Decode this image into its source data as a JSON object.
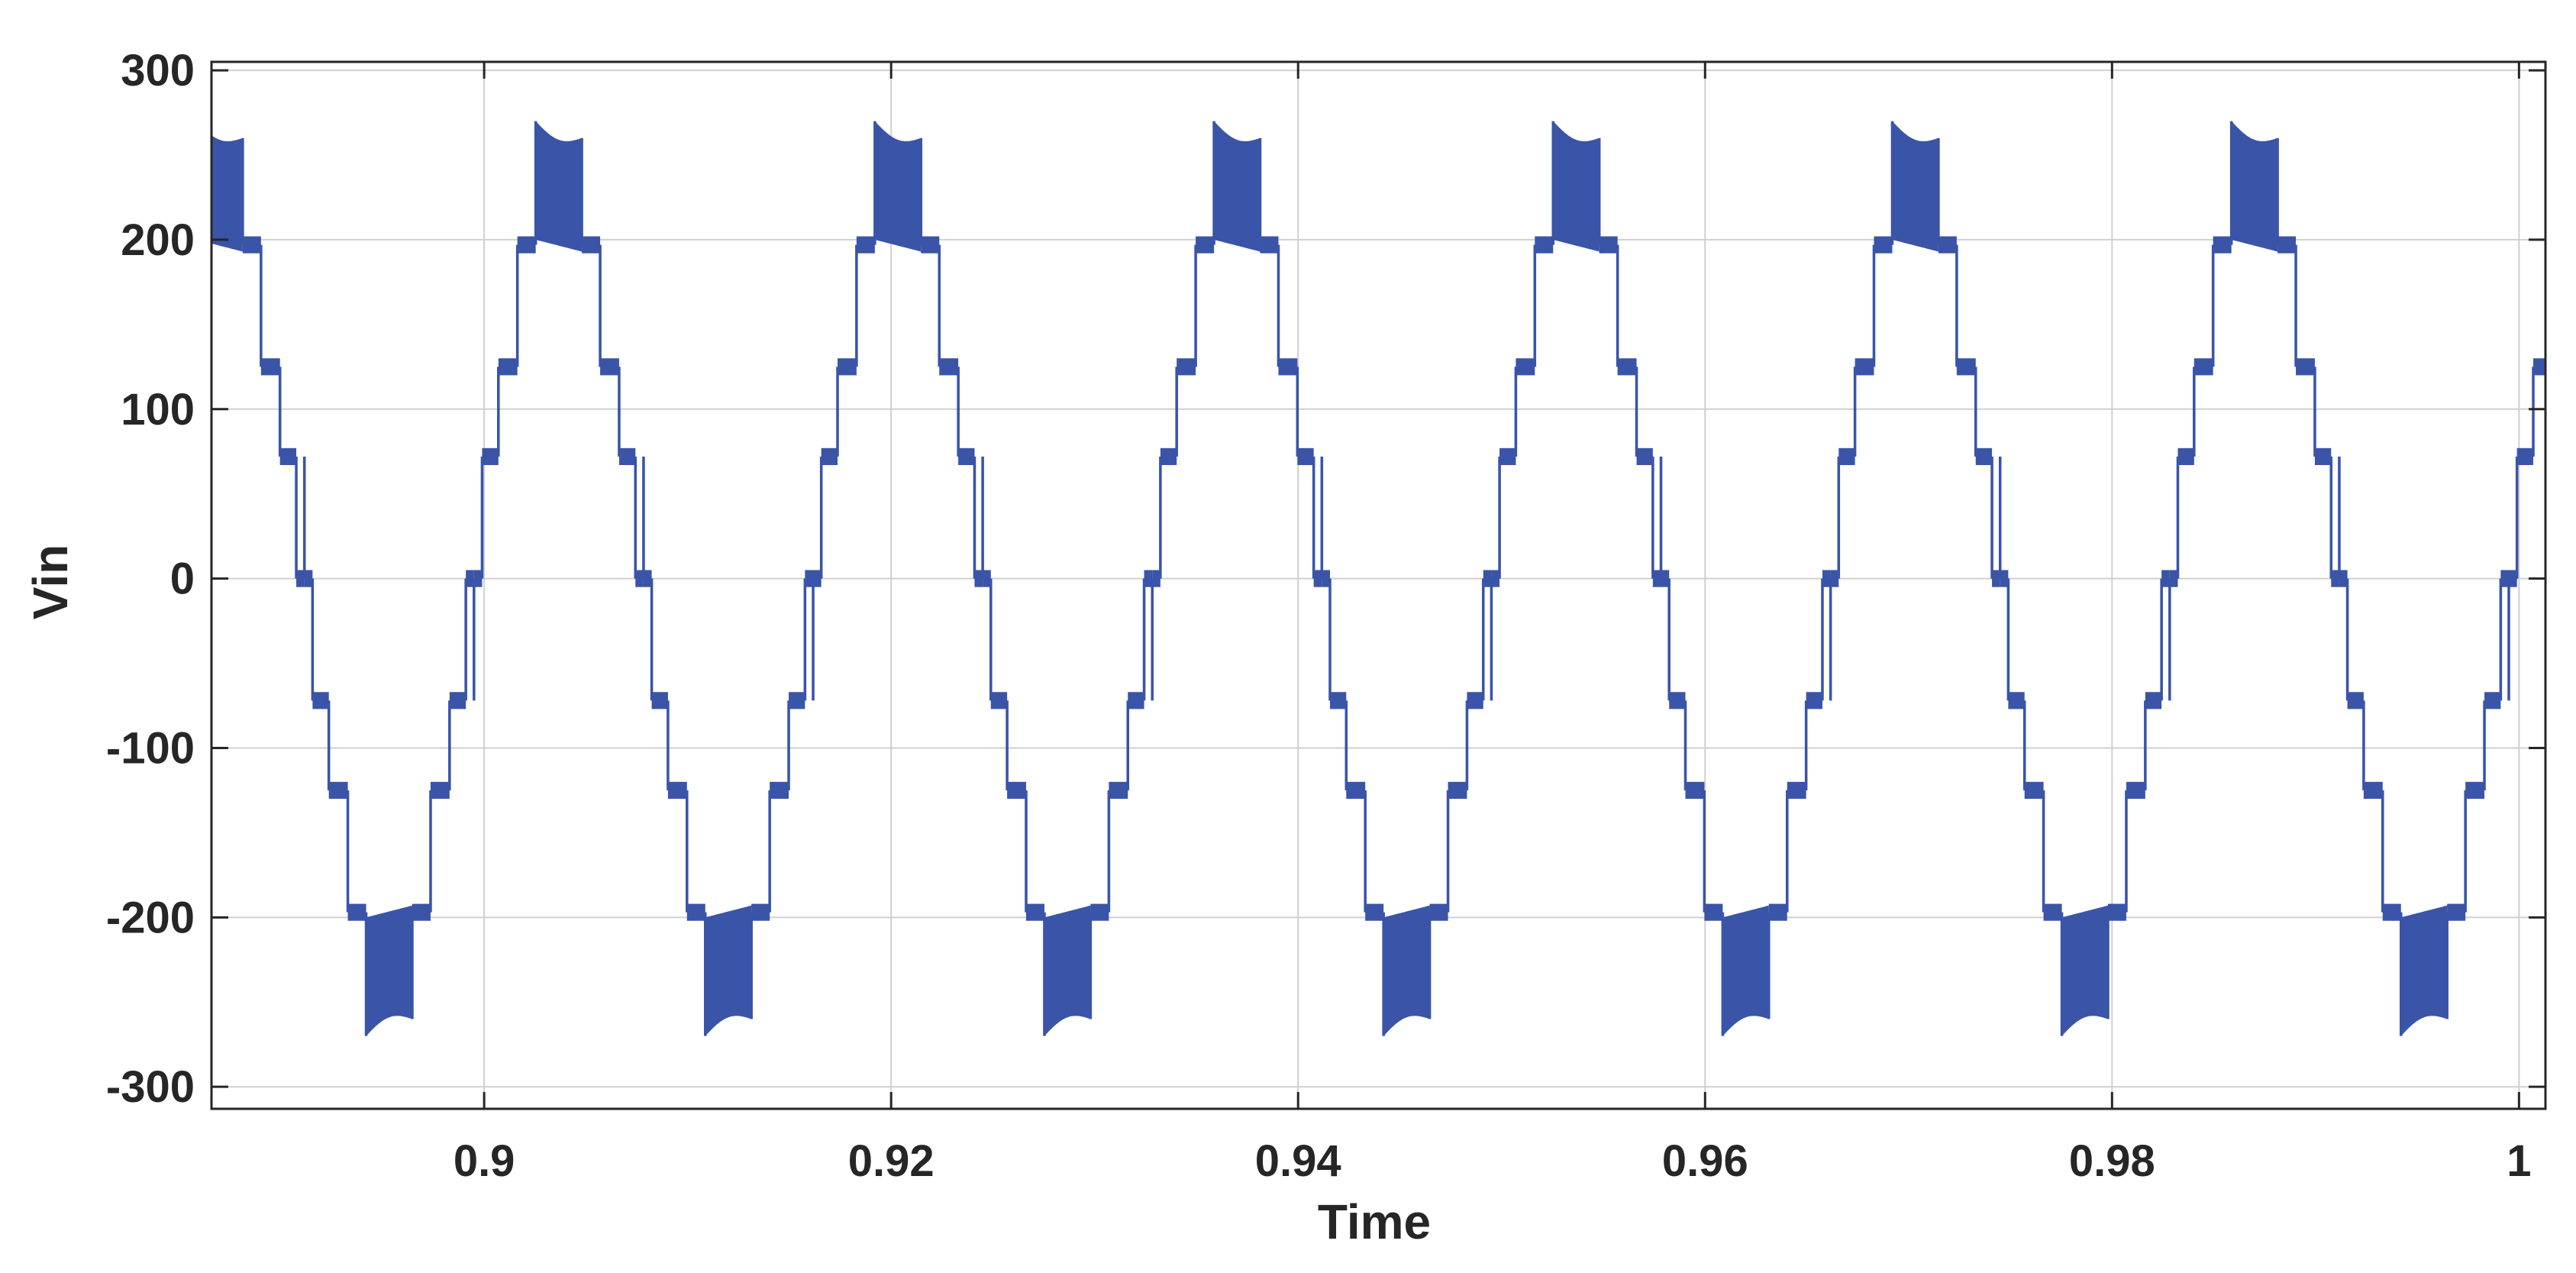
{
  "chart_data": {
    "type": "line",
    "title": "",
    "xlabel": "Time",
    "ylabel": "Vin",
    "xlim": [
      0.8866,
      1.0013
    ],
    "ylim": [
      -313,
      305
    ],
    "grid": true,
    "xticks": [
      0.9,
      0.92,
      0.94,
      0.96,
      0.98,
      1
    ],
    "xtick_labels": [
      "0.9",
      "0.92",
      "0.94",
      "0.96",
      "0.98",
      "1"
    ],
    "yticks": [
      300,
      200,
      100,
      0,
      -100,
      -200,
      -300
    ],
    "ytick_labels": [
      "300",
      "200",
      "100",
      "0",
      "-100",
      "-200",
      "-300"
    ],
    "line_color": "#3a54a7",
    "series": [
      {
        "name": "",
        "frequency_hz": 60,
        "phase_ref_time": 0.8995,
        "waveform": "multilevel staircase with PWM switching at the peaks",
        "step_levels": [
          0,
          72,
          125,
          197
        ],
        "peak_band_start": [
          270,
          200
        ],
        "peak_band_end": [
          260,
          193
        ]
      }
    ]
  }
}
